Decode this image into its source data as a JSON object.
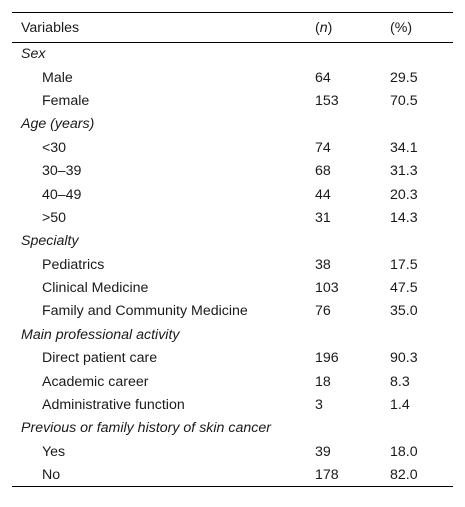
{
  "table": {
    "headers": {
      "variable": "Variables",
      "n_open": "(",
      "n_letter": "n",
      "n_close": ")",
      "percent": "(%)"
    },
    "groups": [
      {
        "label": "Sex",
        "rows": [
          {
            "label": "Male",
            "n": "64",
            "pct": "29.5"
          },
          {
            "label": "Female",
            "n": "153",
            "pct": "70.5"
          }
        ]
      },
      {
        "label": "Age (years)",
        "rows": [
          {
            "label": "<30",
            "n": "74",
            "pct": "34.1"
          },
          {
            "label": "30–39",
            "n": "68",
            "pct": "31.3"
          },
          {
            "label": "40–49",
            "n": "44",
            "pct": "20.3"
          },
          {
            "label": ">50",
            "n": "31",
            "pct": "14.3"
          }
        ]
      },
      {
        "label": "Specialty",
        "rows": [
          {
            "label": "Pediatrics",
            "n": "38",
            "pct": "17.5"
          },
          {
            "label": "Clinical Medicine",
            "n": "103",
            "pct": "47.5"
          },
          {
            "label": "Family and Community Medicine",
            "n": "76",
            "pct": "35.0"
          }
        ]
      },
      {
        "label": "Main professional activity",
        "rows": [
          {
            "label": "Direct patient care",
            "n": "196",
            "pct": "90.3"
          },
          {
            "label": "Academic career",
            "n": "18",
            "pct": "8.3"
          },
          {
            "label": "Administrative function",
            "n": "3",
            "pct": "1.4"
          }
        ]
      },
      {
        "label": "Previous or family history of skin cancer",
        "rows": [
          {
            "label": "Yes",
            "n": "39",
            "pct": "18.0"
          },
          {
            "label": "No",
            "n": "178",
            "pct": "82.0"
          }
        ]
      }
    ]
  }
}
